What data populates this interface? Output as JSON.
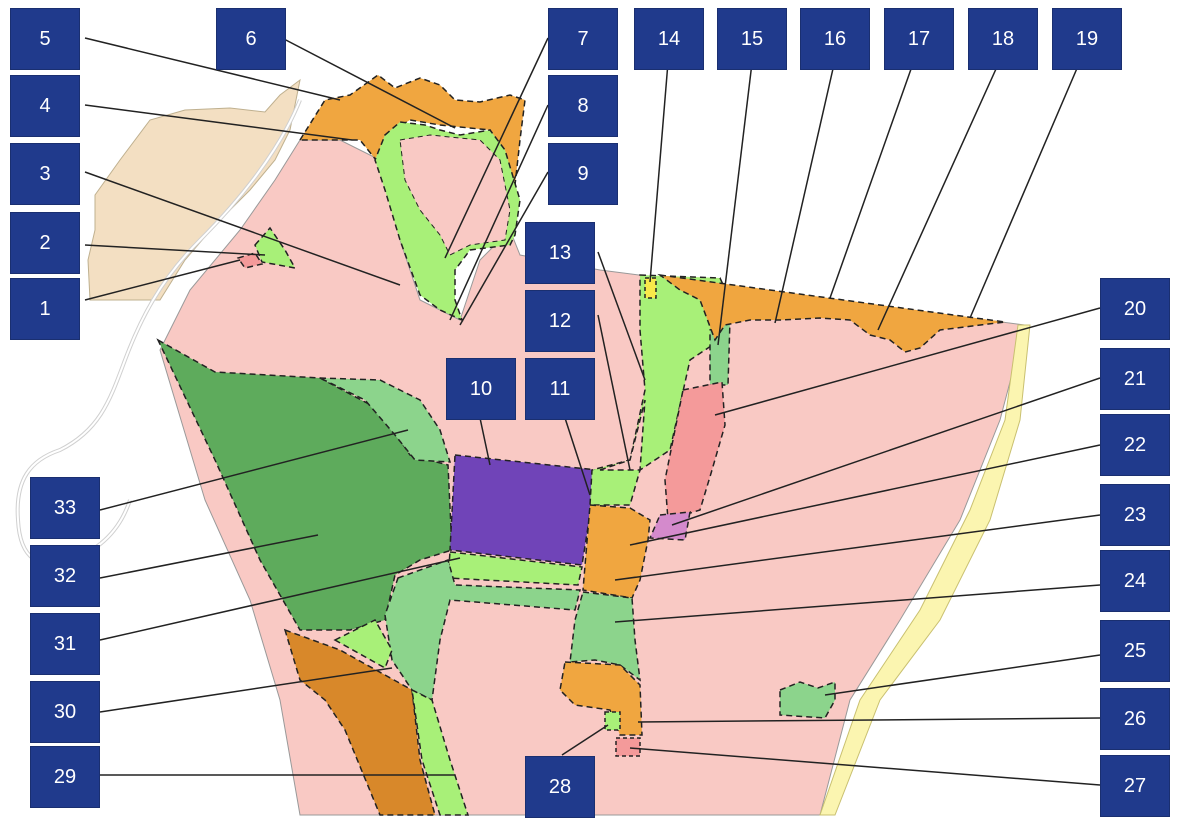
{
  "colors": {
    "residential": "#f9c9c4",
    "park": "#a8f078",
    "green_light": "#8cd48c",
    "green_dark": "#5eab5c",
    "commercial": "#f0a640",
    "commercial_dark": "#d8882a",
    "industrial": "#7044b8",
    "institutional": "#f49a9a",
    "special": "#d48acc",
    "utility": "#f8e84a",
    "outer_area": "#f3dfc2",
    "highway": "#fbf5b0",
    "label_fill": "#203a8c",
    "label_text": "#ffffff",
    "outline": "#222222"
  },
  "labels": [
    "1",
    "2",
    "3",
    "4",
    "5",
    "6",
    "7",
    "8",
    "9",
    "10",
    "11",
    "12",
    "13",
    "14",
    "15",
    "16",
    "17",
    "18",
    "19",
    "20",
    "21",
    "22",
    "23",
    "24",
    "25",
    "26",
    "27",
    "28",
    "29",
    "30",
    "31",
    "32",
    "33"
  ]
}
